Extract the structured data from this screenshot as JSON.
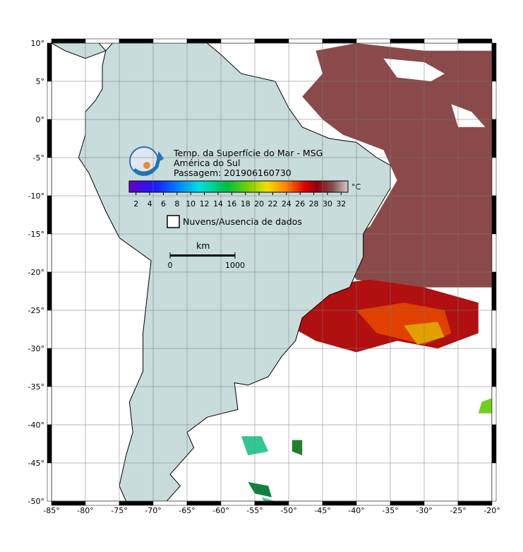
{
  "header": {
    "title": "Temp. da Superfície do Mar - MSG",
    "region": "América do Sul",
    "pass": "Passagem: 201906160730"
  },
  "colorbar": {
    "unit": "°C",
    "lim": [
      1,
      33
    ],
    "ticks": [
      2,
      4,
      6,
      8,
      10,
      12,
      14,
      16,
      18,
      20,
      22,
      24,
      26,
      28,
      30,
      32
    ]
  },
  "legend": {
    "clouds": "Nuvens/Ausencia de dados"
  },
  "scalebar": {
    "unit": "km",
    "lim": [
      0,
      1000
    ],
    "ticks": [
      0,
      1000
    ]
  },
  "map": {
    "lonlim": [
      -85,
      -20
    ],
    "latlim": [
      -50,
      10
    ],
    "lonticks": [
      {
        "value": -85,
        "label": "-85°"
      },
      {
        "value": -80,
        "label": "-80°"
      },
      {
        "value": -75,
        "label": "-75°"
      },
      {
        "value": -70,
        "label": "-70°"
      },
      {
        "value": -65,
        "label": "-65°"
      },
      {
        "value": -60,
        "label": "-60°"
      },
      {
        "value": -55,
        "label": "-55°"
      },
      {
        "value": -50,
        "label": "-50°"
      },
      {
        "value": -45,
        "label": "-45°"
      },
      {
        "value": -40,
        "label": "-40°"
      },
      {
        "value": -35,
        "label": "-35°"
      },
      {
        "value": -30,
        "label": "-30°"
      },
      {
        "value": -25,
        "label": "-25°"
      },
      {
        "value": -20,
        "label": "-20°"
      }
    ],
    "latticks": [
      {
        "value": 10,
        "label": "10°"
      },
      {
        "value": 5,
        "label": "5°"
      },
      {
        "value": 0,
        "label": "0°"
      },
      {
        "value": -5,
        "label": "-5°"
      },
      {
        "value": -10,
        "label": "-10°"
      },
      {
        "value": -15,
        "label": "-15°"
      },
      {
        "value": -20,
        "label": "-20°"
      },
      {
        "value": -25,
        "label": "-25°"
      },
      {
        "value": -30,
        "label": "-30°"
      },
      {
        "value": -35,
        "label": "-35°"
      },
      {
        "value": -40,
        "label": "-40°"
      },
      {
        "value": -45,
        "label": "-45°"
      },
      {
        "value": -50,
        "label": "-50°"
      }
    ]
  }
}
